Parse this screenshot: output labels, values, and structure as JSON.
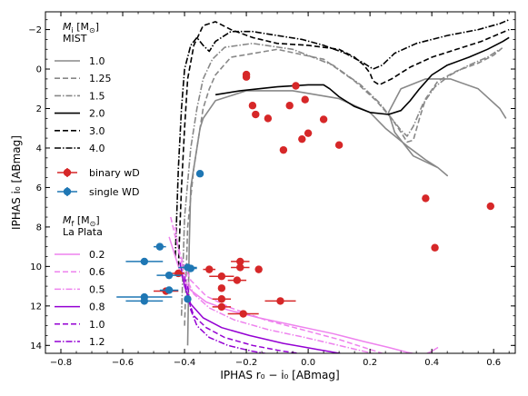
{
  "chart_data": {
    "type": "scatter",
    "title": "",
    "xlabel": "IPHAS r₀ − i₀ [ABmag]",
    "ylabel": "IPHAS i₀ [ABmag]",
    "xlim": [
      -0.85,
      0.67
    ],
    "ylim": [
      14.4,
      -2.9
    ],
    "y_inverted": true,
    "grid": false,
    "xticks": [
      -0.8,
      -0.6,
      -0.4,
      -0.2,
      0.0,
      0.2,
      0.4,
      0.6
    ],
    "xtick_labels": [
      "−0.8",
      "−0.6",
      "−0.4",
      "−0.2",
      "0.0",
      "0.2",
      "0.4",
      "0.6"
    ],
    "yticks": [
      -2,
      0,
      2,
      4,
      6,
      8,
      10,
      12,
      14
    ],
    "ytick_labels": [
      "−2",
      "0",
      "2",
      "4",
      "6",
      "8",
      "10",
      "12",
      "14"
    ],
    "legend_placement": "left",
    "legend": {
      "mist": {
        "title_symbol": "M",
        "title_sub": "i",
        "title_unit": " [M",
        "title_sun": "⊙",
        "title_close": "]",
        "subtitle": "MIST",
        "entries": [
          {
            "label": "1.0",
            "color": "#888888",
            "dash": "",
            "width": 1.6
          },
          {
            "label": "1.25",
            "color": "#888888",
            "dash": "6,3",
            "width": 1.6
          },
          {
            "label": "1.5",
            "color": "#888888",
            "dash": "7,2,1.5,2",
            "width": 1.6
          },
          {
            "label": "2.0",
            "color": "#000000",
            "dash": "",
            "width": 1.6
          },
          {
            "label": "3.0",
            "color": "#000000",
            "dash": "6,3",
            "width": 1.6
          },
          {
            "label": "4.0",
            "color": "#000000",
            "dash": "7,2,1.5,2",
            "width": 1.6
          }
        ]
      },
      "wd": {
        "entries": [
          {
            "label": "binary wD",
            "color": "#d62728"
          },
          {
            "label": "single WD",
            "color": "#1f77b4"
          }
        ]
      },
      "laplata": {
        "title_symbol": "M",
        "title_sub": "f",
        "title_unit": " [M",
        "title_sun": "⊙",
        "title_close": "]",
        "subtitle": "La Plata",
        "entries": [
          {
            "label": "0.2",
            "color": "#ee82ee",
            "dash": "",
            "width": 1.5
          },
          {
            "label": "0.6",
            "color": "#ee82ee",
            "dash": "6,3",
            "width": 1.5
          },
          {
            "label": "0.5",
            "color": "#ee82ee",
            "dash": "7,2,1.5,2",
            "width": 1.5
          },
          {
            "label": "0.8",
            "color": "#9400d3",
            "dash": "",
            "width": 1.5
          },
          {
            "label": "1.0",
            "color": "#9400d3",
            "dash": "6,3",
            "width": 1.5
          },
          {
            "label": "1.2",
            "color": "#9400d3",
            "dash": "7,2,1.5,2",
            "width": 1.5
          }
        ]
      }
    },
    "series": [
      {
        "name": "binary wD",
        "color": "#d62728",
        "points": [
          {
            "x": -0.2,
            "y": 0.4
          },
          {
            "x": -0.2,
            "y": 0.28
          },
          {
            "x": -0.04,
            "y": 0.85
          },
          {
            "x": -0.01,
            "y": 1.55
          },
          {
            "x": -0.06,
            "y": 1.85
          },
          {
            "x": -0.18,
            "y": 1.85
          },
          {
            "x": -0.17,
            "y": 2.3
          },
          {
            "x": -0.13,
            "y": 2.5
          },
          {
            "x": 0.05,
            "y": 2.55
          },
          {
            "x": 0.0,
            "y": 3.25
          },
          {
            "x": -0.02,
            "y": 3.55
          },
          {
            "x": 0.1,
            "y": 3.85
          },
          {
            "x": -0.08,
            "y": 4.1
          },
          {
            "x": 0.38,
            "y": 6.55
          },
          {
            "x": 0.59,
            "y": 6.95
          },
          {
            "x": 0.41,
            "y": 9.05
          },
          {
            "x": -0.22,
            "y": 9.75
          },
          {
            "x": -0.22,
            "y": 10.05
          },
          {
            "x": -0.32,
            "y": 10.15
          },
          {
            "x": -0.16,
            "y": 10.15
          },
          {
            "x": -0.42,
            "y": 10.35
          },
          {
            "x": -0.28,
            "y": 10.5
          },
          {
            "x": -0.23,
            "y": 10.7
          },
          {
            "x": -0.28,
            "y": 11.1
          },
          {
            "x": -0.46,
            "y": 11.25
          },
          {
            "x": -0.28,
            "y": 11.65
          },
          {
            "x": -0.09,
            "y": 11.75
          },
          {
            "x": -0.28,
            "y": 12.05
          },
          {
            "x": -0.21,
            "y": 12.4
          }
        ],
        "xerr": [
          0.01,
          0.01,
          0.01,
          0.01,
          0.01,
          0.01,
          0.01,
          0.01,
          0.01,
          0.01,
          0.01,
          0.01,
          0.01,
          0.01,
          0.01,
          0.01,
          0.03,
          0.03,
          0.02,
          0.01,
          0.02,
          0.04,
          0.03,
          0.01,
          0.04,
          0.03,
          0.05,
          0.03,
          0.05
        ]
      },
      {
        "name": "single WD",
        "color": "#1f77b4",
        "points": [
          {
            "x": -0.35,
            "y": 5.3
          },
          {
            "x": -0.48,
            "y": 9.0
          },
          {
            "x": -0.53,
            "y": 9.75
          },
          {
            "x": -0.39,
            "y": 10.05
          },
          {
            "x": -0.38,
            "y": 10.1
          },
          {
            "x": -0.45,
            "y": 10.45
          },
          {
            "x": -0.45,
            "y": 11.2
          },
          {
            "x": -0.53,
            "y": 11.55
          },
          {
            "x": -0.53,
            "y": 11.75
          },
          {
            "x": -0.39,
            "y": 11.65
          }
        ],
        "xerr": [
          0.01,
          0.02,
          0.06,
          0.03,
          0.02,
          0.04,
          0.03,
          0.09,
          0.06,
          0.01
        ]
      }
    ],
    "tracks_mist": [
      {
        "name": "1.0",
        "x": [
          -0.39,
          -0.385,
          -0.38,
          -0.36,
          -0.35,
          -0.34,
          -0.3,
          -0.2,
          -0.05,
          0.1,
          0.2,
          0.25,
          0.32,
          0.38,
          0.42,
          0.45,
          0.42,
          0.34,
          0.28,
          0.26,
          0.3,
          0.38,
          0.46,
          0.55,
          0.62,
          0.64
        ],
        "y": [
          14.0,
          9.0,
          6.0,
          4.0,
          3.0,
          2.5,
          1.6,
          1.1,
          1.1,
          1.5,
          2.2,
          3.0,
          3.9,
          4.6,
          5.0,
          5.4,
          5.0,
          4.4,
          3.2,
          2.2,
          1.0,
          0.5,
          0.5,
          1.0,
          2.0,
          2.5
        ]
      },
      {
        "name": "1.25",
        "x": [
          -0.4,
          -0.39,
          -0.37,
          -0.35,
          -0.34,
          -0.32,
          -0.3,
          -0.25,
          -0.1,
          0.05,
          0.15,
          0.22,
          0.27,
          0.3,
          0.32,
          0.34,
          0.36,
          0.38,
          0.42,
          0.48,
          0.55,
          0.6,
          0.63
        ],
        "y": [
          13.0,
          8.0,
          5.0,
          3.0,
          2.0,
          1.0,
          0.3,
          -0.6,
          -1.0,
          -0.5,
          0.6,
          1.6,
          2.5,
          3.2,
          3.7,
          3.6,
          2.5,
          1.5,
          0.6,
          0.1,
          -0.3,
          -0.7,
          -1.1
        ]
      },
      {
        "name": "1.5",
        "x": [
          -0.41,
          -0.4,
          -0.38,
          -0.36,
          -0.34,
          -0.31,
          -0.27,
          -0.18,
          -0.05,
          0.08,
          0.17,
          0.23,
          0.27,
          0.3,
          0.32,
          0.34,
          0.37,
          0.41,
          0.46,
          0.52,
          0.58,
          0.62
        ],
        "y": [
          12.5,
          7.5,
          4.0,
          2.0,
          0.5,
          -0.5,
          -1.1,
          -1.3,
          -1.0,
          -0.2,
          0.8,
          1.7,
          2.5,
          3.1,
          3.4,
          2.9,
          1.8,
          0.9,
          0.3,
          -0.2,
          -0.6,
          -1.0
        ]
      },
      {
        "name": "2.0",
        "x": [
          -0.3,
          -0.22,
          -0.1,
          0.0,
          0.05,
          0.07,
          0.1,
          0.15,
          0.2,
          0.26,
          0.3,
          0.33,
          0.36,
          0.4,
          0.45,
          0.52,
          0.58,
          0.63,
          0.65
        ],
        "y": [
          1.3,
          1.1,
          0.9,
          0.8,
          0.8,
          1.0,
          1.4,
          1.9,
          2.2,
          2.3,
          2.1,
          1.6,
          1.0,
          0.3,
          -0.2,
          -0.6,
          -1.0,
          -1.4,
          -1.6
        ]
      },
      {
        "name": "3.0",
        "x": [
          -0.42,
          -0.41,
          -0.4,
          -0.39,
          -0.37,
          -0.34,
          -0.3,
          -0.25,
          -0.18,
          -0.1,
          0.0,
          0.1,
          0.15,
          0.18,
          0.2,
          0.21,
          0.23,
          0.27,
          0.33,
          0.4,
          0.48,
          0.56,
          0.62,
          0.65
        ],
        "y": [
          10.0,
          6.0,
          3.0,
          0.5,
          -1.2,
          -2.2,
          -2.4,
          -2.0,
          -1.6,
          -1.3,
          -1.2,
          -1.0,
          -0.6,
          -0.2,
          0.2,
          0.6,
          0.8,
          0.5,
          -0.1,
          -0.6,
          -1.0,
          -1.4,
          -1.8,
          -2.0
        ]
      },
      {
        "name": "4.0",
        "x": [
          -0.43,
          -0.42,
          -0.41,
          -0.4,
          -0.38,
          -0.36,
          -0.34,
          -0.32,
          -0.3,
          -0.25,
          -0.18,
          -0.1,
          -0.02,
          0.05,
          0.12,
          0.18,
          0.21,
          0.24,
          0.28,
          0.35,
          0.45,
          0.55,
          0.62,
          0.65
        ],
        "y": [
          9.5,
          5.0,
          2.0,
          0.0,
          -1.2,
          -1.6,
          -1.2,
          -0.9,
          -1.4,
          -1.9,
          -1.9,
          -1.7,
          -1.5,
          -1.2,
          -0.8,
          -0.3,
          0.0,
          -0.2,
          -0.8,
          -1.3,
          -1.7,
          -2.0,
          -2.3,
          -2.5
        ]
      }
    ],
    "tracks_laplata": [
      {
        "name": "0.2",
        "x": [
          -0.45,
          -0.43,
          -0.41,
          -0.38,
          -0.33,
          -0.26,
          -0.16,
          -0.04,
          0.08,
          0.18,
          0.26,
          0.32,
          0.37,
          0.4,
          0.42
        ],
        "y": [
          8.5,
          9.5,
          10.5,
          11.2,
          11.8,
          12.2,
          12.6,
          13.0,
          13.4,
          13.8,
          14.1,
          14.35,
          14.5,
          14.3,
          14.1
        ]
      },
      {
        "name": "0.6",
        "x": [
          -0.445,
          -0.43,
          -0.41,
          -0.38,
          -0.33,
          -0.25,
          -0.14,
          -0.02,
          0.1,
          0.2,
          0.26
        ],
        "y": [
          7.5,
          8.5,
          9.6,
          10.7,
          11.5,
          12.1,
          12.7,
          13.2,
          13.7,
          14.2,
          14.5
        ]
      },
      {
        "name": "0.5",
        "x": [
          -0.43,
          -0.42,
          -0.4,
          -0.37,
          -0.32,
          -0.24,
          -0.13,
          -0.01,
          0.1,
          0.18,
          0.24
        ],
        "y": [
          8.0,
          9.2,
          10.4,
          11.4,
          12.1,
          12.7,
          13.2,
          13.6,
          14.0,
          14.3,
          14.5
        ]
      },
      {
        "name": "0.8",
        "x": [
          -0.415,
          -0.4,
          -0.38,
          -0.34,
          -0.28,
          -0.19,
          -0.08,
          0.03,
          0.12,
          0.18
        ],
        "y": [
          9.8,
          11.0,
          11.9,
          12.6,
          13.1,
          13.5,
          13.9,
          14.2,
          14.45,
          14.55
        ]
      },
      {
        "name": "1.0",
        "x": [
          -0.4,
          -0.39,
          -0.37,
          -0.33,
          -0.27,
          -0.18,
          -0.08,
          0.02,
          0.1
        ],
        "y": [
          10.5,
          11.6,
          12.5,
          13.1,
          13.6,
          14.0,
          14.3,
          14.5,
          14.6
        ]
      },
      {
        "name": "1.2",
        "x": [
          -0.39,
          -0.38,
          -0.36,
          -0.32,
          -0.26,
          -0.18,
          -0.1,
          -0.03
        ],
        "y": [
          11.0,
          12.2,
          13.0,
          13.6,
          14.0,
          14.3,
          14.5,
          14.6
        ]
      }
    ]
  }
}
